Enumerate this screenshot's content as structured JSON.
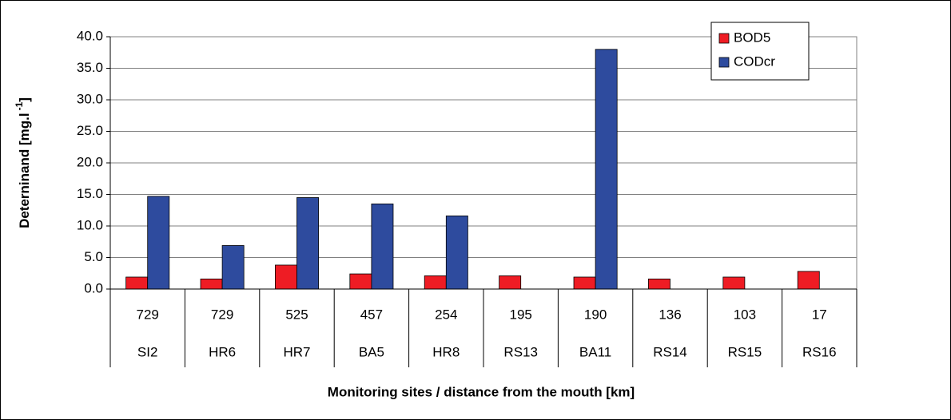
{
  "chart_data": {
    "type": "bar",
    "ylabel_parts": [
      "Deterninand [mg.l",
      "-1",
      "]"
    ],
    "xlabel": "Monitoring sites / distance from the mouth [km]",
    "categories": [
      "SI2",
      "HR6",
      "HR7",
      "BA5",
      "HR8",
      "RS13",
      "BA11",
      "RS14",
      "RS15",
      "RS16"
    ],
    "distances": [
      "729",
      "729",
      "525",
      "457",
      "254",
      "195",
      "190",
      "136",
      "103",
      "17"
    ],
    "series": [
      {
        "name": "BOD5",
        "color": "#ee1c24",
        "values": [
          1.9,
          1.6,
          3.8,
          2.4,
          2.1,
          2.1,
          1.9,
          1.6,
          1.9,
          2.8
        ]
      },
      {
        "name": "CODcr",
        "color": "#2e4b9e",
        "values": [
          14.7,
          6.9,
          14.5,
          13.5,
          11.6,
          null,
          38.0,
          null,
          null,
          null
        ]
      }
    ],
    "ylim": [
      0,
      40
    ],
    "yticks": [
      {
        "value": 0,
        "label": "0.0"
      },
      {
        "value": 5,
        "label": "5.0"
      },
      {
        "value": 10,
        "label": "10.0"
      },
      {
        "value": 15,
        "label": "15.0"
      },
      {
        "value": 20,
        "label": "20.0"
      },
      {
        "value": 25,
        "label": "25.0"
      },
      {
        "value": 30,
        "label": "30.0"
      },
      {
        "value": 35,
        "label": "35.0"
      },
      {
        "value": 40,
        "label": "40.0"
      }
    ],
    "grid": true
  }
}
